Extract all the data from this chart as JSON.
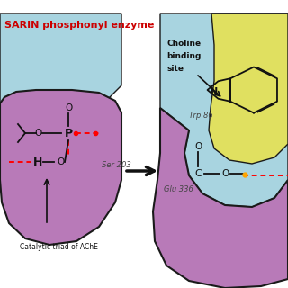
{
  "title": "SARIN phosphonyl enzyme",
  "title_color": "#cc0000",
  "bg_color": "#ffffff",
  "light_blue": "#a8d4e0",
  "purple": "#b87ab8",
  "yellow": "#e0e060",
  "dark_outline": "#1a1a1a",
  "labels": {
    "ser203": "Ser 203",
    "glu336": "Glu 336",
    "trp86": "Trp 86",
    "choline_line1": "Choline",
    "choline_line2": "binding",
    "choline_line3": "site",
    "catalytic": "Catalytic triad of AChE"
  }
}
